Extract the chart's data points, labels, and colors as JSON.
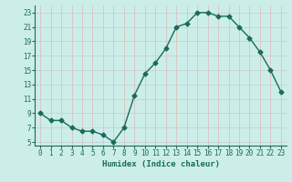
{
  "x": [
    0,
    1,
    2,
    3,
    4,
    5,
    6,
    7,
    8,
    9,
    10,
    11,
    12,
    13,
    14,
    15,
    16,
    17,
    18,
    19,
    20,
    21,
    22,
    23
  ],
  "y": [
    9,
    8,
    8,
    7,
    6.5,
    6.5,
    6,
    5,
    7,
    11.5,
    14.5,
    16,
    18,
    21,
    21.5,
    23,
    23,
    22.5,
    22.5,
    21,
    19.5,
    17.5,
    15,
    12
  ],
  "xlabel": "Humidex (Indice chaleur)",
  "xlim": [
    -0.5,
    23.5
  ],
  "ylim": [
    4.5,
    24
  ],
  "yticks": [
    5,
    7,
    9,
    11,
    13,
    15,
    17,
    19,
    21,
    23
  ],
  "xticks": [
    0,
    1,
    2,
    3,
    4,
    5,
    6,
    7,
    8,
    9,
    10,
    11,
    12,
    13,
    14,
    15,
    16,
    17,
    18,
    19,
    20,
    21,
    22,
    23
  ],
  "line_color": "#1a6b5a",
  "bg_color": "#cceee8",
  "grid_color_h": "#c8c8d8",
  "grid_color_v": "#e0b8b8",
  "spine_color": "#1a6b5a",
  "marker": "D",
  "marker_size": 2.5,
  "line_width": 1.0,
  "xlabel_fontsize": 6.5,
  "tick_fontsize": 5.5,
  "tick_color": "#1a6b5a"
}
